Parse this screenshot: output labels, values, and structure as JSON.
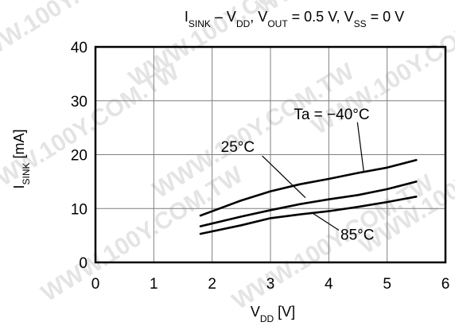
{
  "chart_data": {
    "type": "line",
    "title": {
      "parts": [
        {
          "text": "I",
          "sub": "SINK"
        },
        {
          "text": " – V",
          "sub": "DD"
        },
        {
          "text": ", V",
          "sub": "OUT"
        },
        {
          "text": " = 0.5 V, V",
          "sub": "SS"
        },
        {
          "text": " = 0 V",
          "sub": ""
        }
      ]
    },
    "xlabel": {
      "main": "V",
      "sub": "DD",
      "rest": " [V]"
    },
    "ylabel": {
      "main": "I",
      "sub": "SINK",
      "rest": " [mA]"
    },
    "xlim": [
      0,
      6
    ],
    "ylim": [
      0,
      40
    ],
    "x_ticks": [
      "0",
      "1",
      "2",
      "3",
      "4",
      "5",
      "6"
    ],
    "y_ticks": [
      "0",
      "10",
      "20",
      "30",
      "40"
    ],
    "grid": true,
    "series": [
      {
        "name": "Ta = −40°C",
        "x": [
          1.8,
          2.5,
          3.0,
          3.5,
          4.0,
          4.5,
          5.0,
          5.5
        ],
        "y": [
          8.7,
          11.5,
          13.2,
          14.5,
          15.5,
          16.6,
          17.6,
          19.0
        ]
      },
      {
        "name": "25°C",
        "x": [
          1.8,
          2.5,
          3.0,
          3.5,
          4.0,
          4.5,
          5.0,
          5.5
        ],
        "y": [
          6.7,
          8.5,
          9.7,
          10.8,
          11.7,
          12.5,
          13.6,
          15.0
        ]
      },
      {
        "name": "85°C",
        "x": [
          1.8,
          2.5,
          3.0,
          3.5,
          4.0,
          4.5,
          5.0,
          5.5
        ],
        "y": [
          5.3,
          6.9,
          8.2,
          8.9,
          9.5,
          10.3,
          11.2,
          12.2
        ]
      }
    ],
    "annotations": [
      {
        "text": "Ta = −40°C",
        "series": 0,
        "label_at": [
          3.4,
          26.6
        ],
        "point": [
          4.6,
          16.8
        ]
      },
      {
        "text": "25°C",
        "series": 1,
        "label_at": [
          2.15,
          20.5
        ],
        "point": [
          3.6,
          12.0
        ]
      },
      {
        "text": "85°C",
        "series": 2,
        "label_at": [
          4.2,
          4.2
        ],
        "point": [
          3.7,
          9.3
        ]
      }
    ]
  },
  "watermark": "WWW.100Y.COM.TW"
}
